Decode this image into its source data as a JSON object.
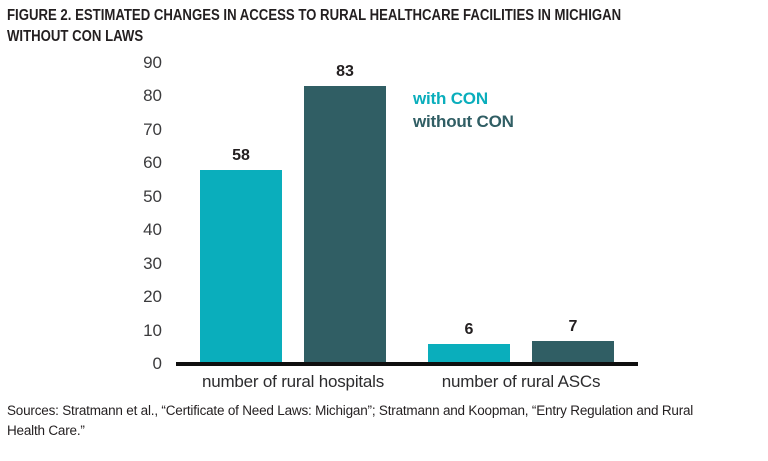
{
  "title": {
    "line1": "FIGURE 2. ESTIMATED CHANGES IN ACCESS TO RURAL HEALTHCARE FACILITIES IN MICHIGAN",
    "line2": "WITHOUT CON LAWS"
  },
  "chart_data": {
    "type": "bar",
    "title": "FIGURE 2. ESTIMATED CHANGES IN ACCESS TO RURAL HEALTHCARE FACILITIES IN MICHIGAN WITHOUT CON LAWS",
    "categories": [
      "number of rural hospitals",
      "number of rural ASCs"
    ],
    "series": [
      {
        "name": "with CON",
        "color": "#0aaebc",
        "values": [
          58,
          6
        ]
      },
      {
        "name": "without CON",
        "color": "#305e64",
        "values": [
          83,
          7
        ]
      }
    ],
    "ylim": [
      0,
      90
    ],
    "yticks": [
      0,
      10,
      20,
      30,
      40,
      50,
      60,
      70,
      80,
      90
    ],
    "xlabel": "",
    "ylabel": "",
    "grid": false,
    "legend_position": "upper right",
    "value_labels": true,
    "axis_color": "#0f0f0f"
  },
  "sources": {
    "line1": "Sources: Stratmann et al., “Certificate of Need Laws: Michigan”; Stratmann and Koopman, “Entry Regulation and Rural",
    "line2": "Health Care.”"
  }
}
